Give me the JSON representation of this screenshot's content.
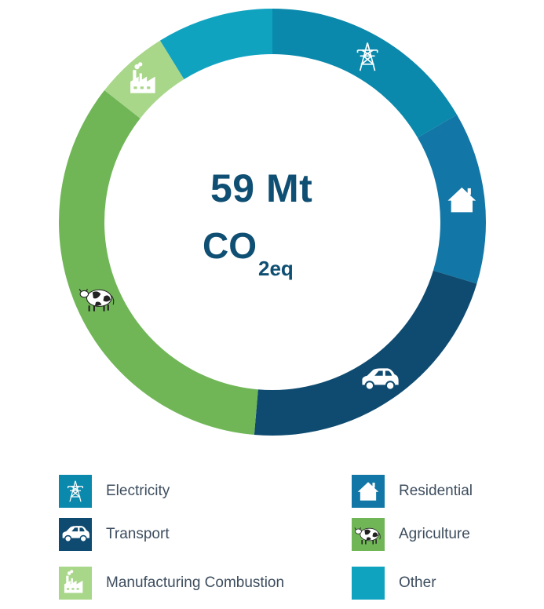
{
  "center": {
    "value": "59 Mt",
    "unit_main": "CO",
    "unit_sub": "2eq"
  },
  "chart_data": {
    "type": "pie",
    "donut": true,
    "unit": "Mt CO2eq",
    "total": 59,
    "categories": [
      "Electricity",
      "Residential",
      "Transport",
      "Agriculture",
      "Manufacturing Combustion",
      "Other"
    ],
    "values": [
      9.8,
      7.7,
      12.8,
      20.2,
      3.3,
      5.2
    ],
    "colors": [
      "#0a89ac",
      "#1277a6",
      "#0f4b70",
      "#70b657",
      "#a9d78a",
      "#10a3c0"
    ],
    "icons": [
      "transmission-tower-icon",
      "house-icon",
      "car-icon",
      "cow-icon",
      "factory-icon",
      ""
    ]
  },
  "legend": {
    "items": [
      {
        "label": "Electricity",
        "color": "#0a89ac",
        "icon": "transmission-tower-icon"
      },
      {
        "label": "Residential",
        "color": "#1277a6",
        "icon": "house-icon"
      },
      {
        "label": "Transport",
        "color": "#0f4b70",
        "icon": "car-icon"
      },
      {
        "label": "Agriculture",
        "color": "#70b657",
        "icon": "cow-icon"
      },
      {
        "label": "Manufacturing Combustion",
        "color": "#a9d78a",
        "icon": "factory-icon"
      },
      {
        "label": "Other",
        "color": "#10a3c0",
        "icon": ""
      }
    ]
  }
}
